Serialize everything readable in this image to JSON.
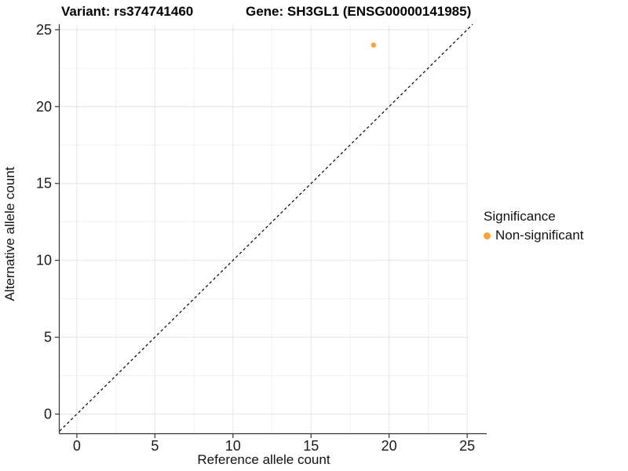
{
  "figure": {
    "background": "#FFFFFF"
  },
  "chart_data": {
    "type": "scatter",
    "title_left": "Variant: rs374741460",
    "title_right": "Gene: SH3GL1 (ENSG00000141985)",
    "xlabel": "Reference allele count",
    "ylabel": "Alternative allele count",
    "xlim": [
      -1.1,
      26.25
    ],
    "ylim": [
      -1.25,
      25.35
    ],
    "x_ticks": [
      0,
      5,
      10,
      15,
      20,
      25
    ],
    "y_ticks": [
      0,
      5,
      10,
      15,
      20,
      25
    ],
    "minor_grid_step": 2.5,
    "grid": "on",
    "points": [
      {
        "x": 19,
        "y": 24,
        "series": "Non-significant"
      }
    ],
    "identity_line": {
      "equation": "y = x",
      "style": "dashed",
      "color": "#000000"
    },
    "legend": {
      "title": "Significance",
      "position": "right",
      "items": [
        {
          "label": "Non-significant",
          "color": "#F8A43C"
        }
      ]
    },
    "colors": {
      "point": "#F8A43C",
      "grid_major": "#E4E4E4",
      "grid_minor": "#F0F0F0",
      "axis_line": "#333333",
      "tick_mark": "#333333",
      "tick_label": "#1a1a1a"
    }
  }
}
